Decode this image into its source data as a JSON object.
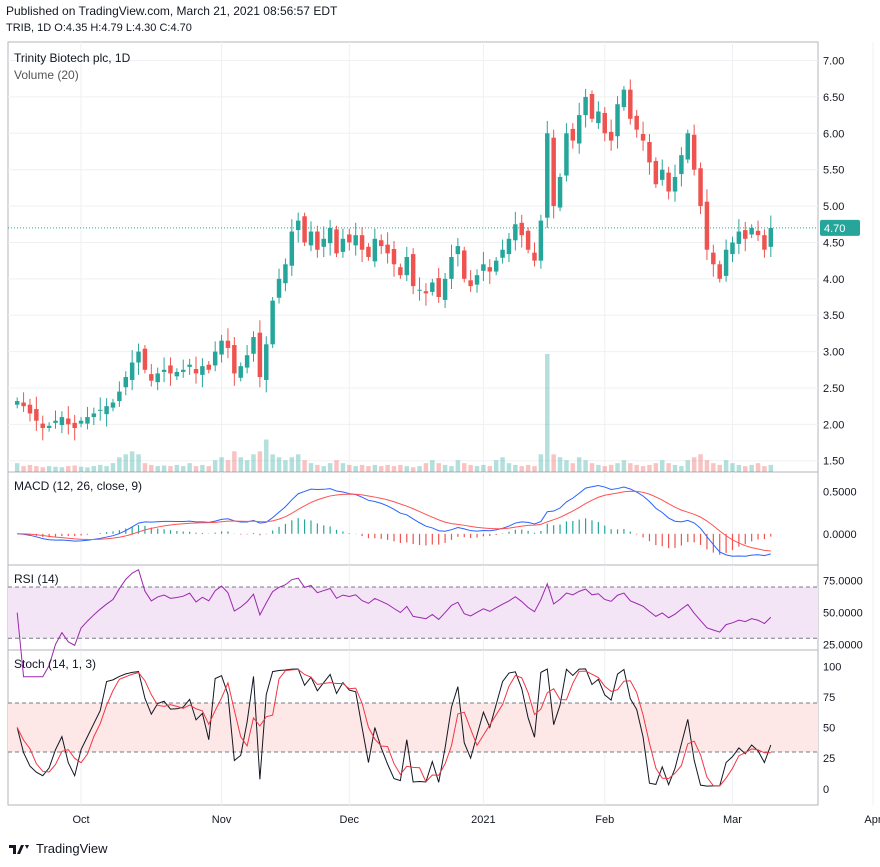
{
  "header": {
    "published": "Published on TradingView.com, March 21, 2021 08:56:57 EDT",
    "ohlc": "TRIB, 1D  O:4.35  H:4.79  L:4.30  C:4.70"
  },
  "colors": {
    "up": "#26a69a",
    "down": "#ef5350",
    "macd": "#2962ff",
    "signal": "#ff5252",
    "rsi": "#9c27b0",
    "stoch_k": "#131722",
    "stoch_d": "#f23645",
    "price_line": "#26a69a",
    "grid": "#eef0f3",
    "rsi_band": "#f3e5f5",
    "stoch_band": "#fde7e7"
  },
  "footer": {
    "brand": "TradingView",
    "icon": "tradingview-logo-icon"
  },
  "chart_data": [
    {
      "type": "candlestick",
      "title": "Trinity Biotech plc, 1D",
      "volume_label": "Volume (20)",
      "ylim": [
        1.4,
        7.2
      ],
      "y_ticks": [
        "7.00",
        "6.50",
        "6.00",
        "5.50",
        "5.00",
        "4.50",
        "4.00",
        "3.50",
        "3.00",
        "2.50",
        "2.00",
        "1.50"
      ],
      "y_tick_values": [
        7.0,
        6.5,
        6.0,
        5.5,
        5.0,
        4.5,
        4.0,
        3.5,
        3.0,
        2.5,
        2.0,
        1.5
      ],
      "last_price": 4.7,
      "last_price_label": "4.70",
      "x_labels": [
        "Oct",
        "Nov",
        "Dec",
        "2021",
        "Feb",
        "Mar",
        "Apr"
      ],
      "x_label_index": [
        10,
        32,
        52,
        73,
        92,
        112,
        134
      ],
      "closes": [
        2.32,
        2.25,
        2.15,
        2.05,
        1.95,
        1.98,
        2.05,
        2.1,
        2.0,
        1.95,
        2.05,
        2.1,
        2.15,
        2.2,
        2.25,
        2.3,
        2.45,
        2.65,
        2.85,
        3.0,
        2.75,
        2.6,
        2.7,
        2.75,
        2.7,
        2.72,
        2.75,
        2.82,
        2.7,
        2.8,
        2.75,
        3.0,
        3.15,
        3.05,
        2.7,
        2.8,
        2.95,
        3.2,
        2.65,
        3.1,
        3.7,
        4.0,
        4.2,
        4.65,
        4.8,
        4.5,
        4.65,
        4.4,
        4.55,
        4.7,
        4.35,
        4.55,
        4.5,
        4.6,
        4.4,
        4.3,
        4.55,
        4.45,
        4.35,
        4.2,
        4.05,
        4.3,
        3.9,
        3.85,
        3.8,
        3.95,
        3.75,
        4.0,
        4.3,
        4.45,
        4.0,
        3.9,
        4.05,
        4.2,
        4.1,
        4.25,
        4.4,
        4.55,
        4.75,
        4.6,
        4.4,
        4.25,
        4.8,
        6.0,
        5.0,
        5.4,
        6.0,
        5.9,
        6.25,
        6.5,
        6.2,
        6.3,
        6.0,
        5.9,
        6.4,
        6.6,
        6.2,
        6.05,
        5.9,
        5.6,
        5.3,
        5.5,
        5.2,
        5.4,
        5.7,
        6.0,
        5.5,
        5.0,
        4.4,
        4.2,
        4.0,
        4.4,
        4.5,
        4.65,
        4.55,
        4.7,
        4.6,
        4.4,
        4.7
      ],
      "opens_rel": "derived",
      "volumes": [
        0.15,
        0.1,
        0.12,
        0.1,
        0.08,
        0.1,
        0.09,
        0.08,
        0.1,
        0.11,
        0.09,
        0.08,
        0.1,
        0.12,
        0.1,
        0.15,
        0.25,
        0.3,
        0.35,
        0.3,
        0.15,
        0.12,
        0.1,
        0.11,
        0.1,
        0.12,
        0.1,
        0.15,
        0.1,
        0.12,
        0.1,
        0.2,
        0.25,
        0.2,
        0.35,
        0.25,
        0.2,
        0.3,
        0.35,
        0.55,
        0.3,
        0.25,
        0.2,
        0.25,
        0.3,
        0.2,
        0.15,
        0.12,
        0.1,
        0.15,
        0.2,
        0.15,
        0.12,
        0.1,
        0.12,
        0.1,
        0.12,
        0.1,
        0.12,
        0.1,
        0.12,
        0.1,
        0.08,
        0.1,
        0.15,
        0.2,
        0.15,
        0.12,
        0.1,
        0.2,
        0.15,
        0.12,
        0.1,
        0.12,
        0.1,
        0.2,
        0.25,
        0.15,
        0.12,
        0.1,
        0.12,
        0.1,
        0.3,
        2.0,
        0.3,
        0.25,
        0.2,
        0.15,
        0.25,
        0.2,
        0.15,
        0.12,
        0.1,
        0.12,
        0.15,
        0.2,
        0.15,
        0.12,
        0.1,
        0.12,
        0.15,
        0.2,
        0.15,
        0.12,
        0.1,
        0.2,
        0.25,
        0.3,
        0.2,
        0.15,
        0.12,
        0.2,
        0.15,
        0.12,
        0.1,
        0.12,
        0.15,
        0.1,
        0.12
      ]
    },
    {
      "type": "line",
      "title": "MACD (12, 26, close, 9)",
      "ylim": [
        -0.32,
        0.68
      ],
      "y_ticks": [
        "0.5000",
        "0.0000"
      ],
      "y_tick_values": [
        0.5,
        0.0
      ]
    },
    {
      "type": "line",
      "title": "RSI (14)",
      "ylim": [
        24,
        84
      ],
      "y_ticks": [
        "75.0000",
        "50.0000",
        "25.0000"
      ],
      "y_tick_values": [
        75,
        50,
        25
      ],
      "bands": [
        30,
        70
      ]
    },
    {
      "type": "line",
      "title": "Stoch (14, 1, 3)",
      "ylim": [
        -10,
        110
      ],
      "y_ticks": [
        "100",
        "75",
        "50",
        "25",
        "0"
      ],
      "y_tick_values": [
        100,
        75,
        50,
        25,
        0
      ],
      "bands": [
        30,
        70
      ]
    }
  ]
}
